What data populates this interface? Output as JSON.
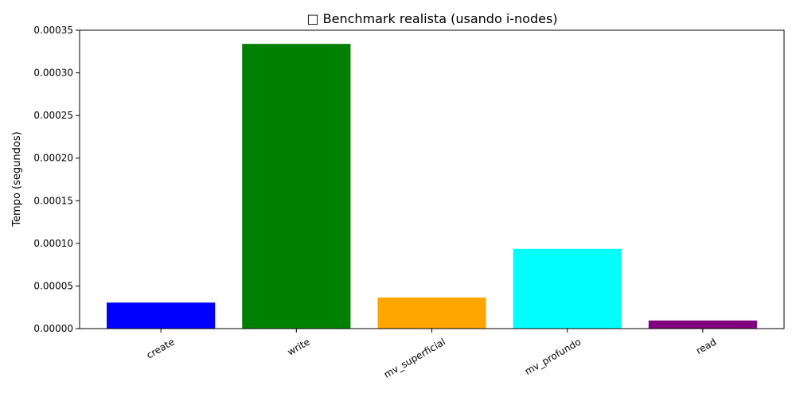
{
  "chart_data": {
    "type": "bar",
    "title": "□ Benchmark realista (usando i-nodes)",
    "xlabel": "",
    "ylabel": "Tempo (segundos)",
    "categories": [
      "create",
      "write",
      "mv_superficial",
      "mv_profundo",
      "read"
    ],
    "values": [
      3.05e-05,
      0.000334,
      3.65e-05,
      9.35e-05,
      9.5e-06
    ],
    "colors": [
      "#0000ff",
      "#008000",
      "#ffa500",
      "#00ffff",
      "#800080"
    ],
    "ylim": [
      0,
      0.00035
    ],
    "yticks": [
      "0.00000",
      "0.00005",
      "0.00010",
      "0.00015",
      "0.00020",
      "0.00025",
      "0.00030",
      "0.00035"
    ],
    "ytick_values": [
      0,
      5e-05,
      0.0001,
      0.00015,
      0.0002,
      0.00025,
      0.0003,
      0.00035
    ],
    "grid": false,
    "legend": "none"
  }
}
